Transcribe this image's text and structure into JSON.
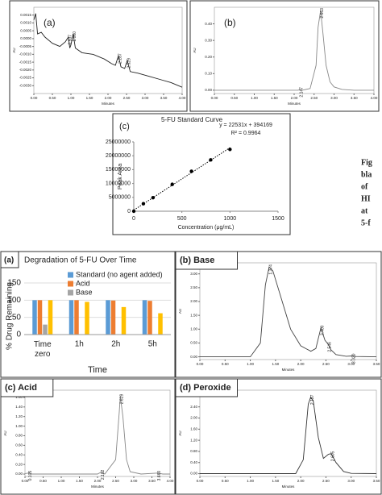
{
  "side_text": [
    "Fig",
    "bla",
    "of",
    "HI",
    "at",
    "5-f"
  ],
  "chart_data": [
    {
      "type": "line",
      "panel_label": "(a)",
      "xlabel": "Minutes",
      "ylabel": "AU",
      "x": [
        0,
        0.05,
        0.1,
        0.2,
        0.3,
        0.5,
        0.7,
        0.85,
        0.93,
        0.97,
        1.0,
        1.06,
        1.12,
        1.3,
        1.6,
        1.9,
        2.1,
        2.2,
        2.28,
        2.35,
        2.45,
        2.52,
        2.6,
        2.8,
        3.1,
        3.4,
        3.7,
        4.0
      ],
      "y": [
        0.0012,
        0.0016,
        0.0003,
        0.0004,
        0.0001,
        -0.0003,
        -0.0005,
        -0.0002,
        0.0001,
        -0.0006,
        -0.0004,
        0.0003,
        -0.0006,
        -0.0009,
        -0.001,
        -0.0013,
        -0.0016,
        -0.0017,
        -0.0011,
        -0.0018,
        -0.0019,
        -0.0014,
        -0.0021,
        -0.0022,
        -0.0024,
        -0.0026,
        -0.0028,
        -0.0031
      ],
      "annotations": [
        "0.937",
        "1.060",
        "2.287",
        "2.529"
      ],
      "xlim": [
        0,
        4
      ],
      "ylim": [
        -0.0035,
        0.002
      ],
      "xticks": [
        {
          "value": 0,
          "label": "0.00"
        },
        {
          "value": 0.5,
          "label": "0.50"
        },
        {
          "value": 1,
          "label": "1.00"
        },
        {
          "value": 1.5,
          "label": "1.50"
        },
        {
          "value": 2,
          "label": "2.00"
        },
        {
          "value": 2.5,
          "label": "2.50"
        },
        {
          "value": 3,
          "label": "3.00"
        },
        {
          "value": 3.5,
          "label": "3.50"
        },
        {
          "value": 4,
          "label": "4.00"
        }
      ],
      "yticks": [
        0.0015,
        {
          "value": 0.001,
          "label": "0.0010"
        },
        0.0005,
        {
          "value": 0,
          "label": "0.0000"
        },
        -0.0005,
        {
          "value": -0.001,
          "label": "-0.0010"
        },
        -0.0015,
        {
          "value": -0.002,
          "label": "-0.0020"
        },
        -0.0025,
        {
          "value": -0.003,
          "label": "-0.0030"
        }
      ],
      "color": "#222222"
    },
    {
      "type": "line",
      "panel_label": "(b)",
      "xlabel": "Minutes",
      "ylabel": "AU",
      "x": [
        0,
        0.5,
        1,
        1.5,
        2,
        2.1,
        2.147,
        2.2,
        2.4,
        2.55,
        2.6,
        2.663,
        2.72,
        2.8,
        2.9,
        3.0,
        3.2,
        3.5,
        4.0
      ],
      "y": [
        0,
        0,
        0,
        0,
        0,
        0,
        0.004,
        0,
        0.01,
        0.15,
        0.38,
        0.48,
        0.35,
        0.15,
        0.05,
        0.02,
        0.005,
        0,
        0
      ],
      "annotations": [
        "2.147",
        "2.663"
      ],
      "xlim": [
        0,
        4
      ],
      "ylim": [
        -0.02,
        0.5
      ],
      "xticks": [
        {
          "value": 0,
          "label": "0.00"
        },
        {
          "value": 0.5,
          "label": "0.50"
        },
        {
          "value": 1,
          "label": "1.00"
        },
        {
          "value": 1.5,
          "label": "1.50"
        },
        {
          "value": 2,
          "label": "2.00"
        },
        {
          "value": 2.5,
          "label": "2.50"
        },
        {
          "value": 3,
          "label": "3.00"
        },
        {
          "value": 3.5,
          "label": "3.50"
        },
        {
          "value": 4,
          "label": "4.00"
        }
      ],
      "yticks": [
        {
          "value": 0,
          "label": "0.00"
        },
        {
          "value": 0.1,
          "label": "0.10"
        },
        {
          "value": 0.2,
          "label": "0.20"
        },
        {
          "value": 0.3,
          "label": "0.30"
        },
        {
          "value": 0.4,
          "label": "0.40"
        }
      ],
      "color": "#888888"
    },
    {
      "type": "scatter",
      "panel_label": "(c)",
      "title": "5-FU Standard Curve",
      "equation": "y = 22531x + 394169",
      "r_squared": "R² = 0.9964",
      "xlabel": "Concentration (μg/mL)",
      "ylabel": "Peak Area",
      "x": [
        0,
        100,
        200,
        400,
        600,
        800,
        1000
      ],
      "y": [
        0,
        2700000,
        4900000,
        9700000,
        14400000,
        18500000,
        22300000
      ],
      "trendline": {
        "x": [
          0,
          1000
        ],
        "y": [
          400000,
          22900000
        ]
      },
      "xlim": [
        0,
        1500
      ],
      "ylim": [
        0,
        25000000
      ],
      "xticks": [
        0,
        500,
        1000,
        1500
      ],
      "yticks": [
        0,
        5000000,
        10000000,
        15000000,
        20000000,
        25000000
      ],
      "color": "#000000"
    },
    {
      "type": "bar",
      "panel_label": "(a)",
      "title": "Degradation of 5-FU Over Time",
      "xlabel": "Time",
      "ylabel": "% Drug Remaining",
      "categories": [
        "Time zero",
        "1h",
        "2h",
        "5h"
      ],
      "series": [
        {
          "name": "Standard (no agent added)",
          "color": "#5b9bd5",
          "values": [
            100,
            100,
            100,
            100
          ]
        },
        {
          "name": "Acid",
          "color": "#ed7d31",
          "values": [
            100,
            100,
            99,
            98
          ]
        },
        {
          "name": "Base",
          "color": "#a5a5a5",
          "values": [
            29,
            null,
            null,
            null
          ]
        },
        {
          "color": "#ffc000",
          "values": [
            100,
            95,
            80,
            62
          ]
        }
      ],
      "ylim": [
        0,
        150
      ],
      "yticks": [
        0,
        50,
        100,
        150
      ]
    },
    {
      "type": "line",
      "title": "(b) Base",
      "xlabel": "Minutes",
      "ylabel": "AU",
      "x": [
        0,
        0.5,
        1.0,
        1.2,
        1.3,
        1.374,
        1.45,
        1.6,
        1.8,
        2.0,
        2.2,
        2.3,
        2.4,
        2.48,
        2.546,
        2.6,
        2.7,
        2.9,
        3.02,
        3.1,
        3.5
      ],
      "y": [
        0,
        0,
        0,
        0.5,
        2.6,
        3.25,
        3.1,
        2.2,
        1.0,
        0.4,
        0.2,
        0.3,
        1.05,
        0.6,
        0.45,
        0.25,
        0.08,
        0.02,
        0.03,
        0.01,
        0
      ],
      "annotations": [
        "1.374",
        "2.400",
        "2.546",
        "3.020"
      ],
      "xlim": [
        0,
        3.5
      ],
      "ylim": [
        -0.1,
        3.4
      ],
      "xticks": [
        {
          "value": 0,
          "label": "0.00"
        },
        {
          "value": 0.5,
          "label": "0.50"
        },
        {
          "value": 1,
          "label": "1.00"
        },
        {
          "value": 1.5,
          "label": "1.50"
        },
        {
          "value": 2,
          "label": "2.00"
        },
        {
          "value": 2.5,
          "label": "2.50"
        },
        {
          "value": 3,
          "label": "3.00"
        },
        {
          "value": 3.5,
          "label": "3.50"
        }
      ],
      "yticks": [
        {
          "value": 0,
          "label": "0.00"
        },
        {
          "value": 0.5,
          "label": "0.50"
        },
        {
          "value": 1,
          "label": "1.00"
        },
        {
          "value": 1.5,
          "label": "1.50"
        },
        {
          "value": 2,
          "label": "2.00"
        },
        {
          "value": 2.5,
          "label": "2.50"
        },
        {
          "value": 3,
          "label": "3.00"
        }
      ],
      "color": "#444444"
    },
    {
      "type": "line",
      "title": "(c) Acid",
      "xlabel": "Minutes",
      "ylabel": "AU",
      "x": [
        0,
        0.105,
        0.2,
        1,
        2.0,
        2.102,
        2.2,
        2.5,
        2.6,
        2.629,
        2.7,
        2.8,
        2.9,
        3.2,
        3.66,
        3.8,
        4.0
      ],
      "y": [
        0.01,
        0.02,
        0,
        0,
        0,
        0.04,
        0,
        0.3,
        1.3,
        1.62,
        1.2,
        0.3,
        0.05,
        0,
        0.02,
        0,
        0
      ],
      "annotations": [
        "0.105",
        "2.102",
        "2.629",
        "3.660"
      ],
      "xlim": [
        0,
        4
      ],
      "ylim": [
        -0.05,
        1.75
      ],
      "xticks": [
        {
          "value": 0,
          "label": "0.00"
        },
        {
          "value": 0.5,
          "label": "0.50"
        },
        {
          "value": 1,
          "label": "1.00"
        },
        {
          "value": 1.5,
          "label": "1.50"
        },
        {
          "value": 2,
          "label": "2.00"
        },
        {
          "value": 2.5,
          "label": "2.50"
        },
        {
          "value": 3,
          "label": "3.00"
        },
        {
          "value": 3.5,
          "label": "3.50"
        },
        {
          "value": 4,
          "label": "4.00"
        }
      ],
      "yticks": [
        {
          "value": 0,
          "label": "0.00"
        },
        {
          "value": 0.2,
          "label": "0.20"
        },
        {
          "value": 0.4,
          "label": "0.40"
        },
        {
          "value": 0.6,
          "label": "0.60"
        },
        {
          "value": 0.8,
          "label": "0.80"
        },
        {
          "value": 1,
          "label": "1.00"
        },
        {
          "value": 1.2,
          "label": "1.20"
        },
        {
          "value": 1.4,
          "label": "1.40"
        },
        {
          "value": 1.6,
          "label": "1.60"
        }
      ],
      "color": "#888888"
    },
    {
      "type": "line",
      "title": "(d) Peroxide",
      "xlabel": "Minutes",
      "ylabel": "AU",
      "x": [
        0,
        1,
        1.9,
        2.05,
        2.15,
        2.197,
        2.25,
        2.35,
        2.45,
        2.55,
        2.605,
        2.7,
        2.85,
        3.0,
        3.5
      ],
      "y": [
        0,
        0,
        0,
        0.5,
        2.5,
        2.75,
        2.6,
        1.3,
        0.55,
        0.7,
        0.72,
        0.4,
        0.08,
        0.01,
        0
      ],
      "annotations": [
        "2.197",
        "2.605"
      ],
      "xlim": [
        0,
        3.5
      ],
      "ylim": [
        -0.1,
        3.0
      ],
      "xticks": [
        {
          "value": 0,
          "label": "0.00"
        },
        {
          "value": 0.5,
          "label": "0.50"
        },
        {
          "value": 1,
          "label": "1.00"
        },
        {
          "value": 1.5,
          "label": "1.50"
        },
        {
          "value": 2,
          "label": "2.00"
        },
        {
          "value": 2.5,
          "label": "2.50"
        },
        {
          "value": 3,
          "label": "3.00"
        },
        {
          "value": 3.5,
          "label": "3.50"
        }
      ],
      "yticks": [
        {
          "value": 0,
          "label": "0.00"
        },
        {
          "value": 0.4,
          "label": "0.40"
        },
        {
          "value": 0.8,
          "label": "0.80"
        },
        {
          "value": 1.2,
          "label": "1.20"
        },
        {
          "value": 1.6,
          "label": "1.60"
        },
        {
          "value": 2,
          "label": "2.00"
        },
        {
          "value": 2.4,
          "label": "2.40"
        },
        {
          "value": 2.8,
          "label": "2.80"
        }
      ],
      "color": "#333333"
    }
  ]
}
